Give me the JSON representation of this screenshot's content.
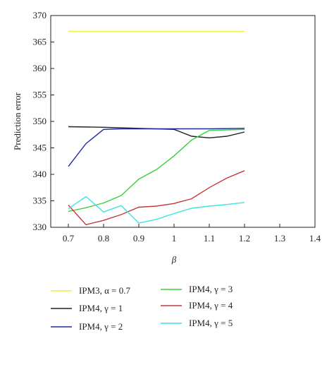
{
  "chart_data": {
    "type": "line",
    "xlabel": "β",
    "ylabel": "Prediction error",
    "xlim": [
      0.65,
      1.4
    ],
    "ylim": [
      330,
      370
    ],
    "xticks": [
      "0.7",
      "0.8",
      "0.9",
      "1",
      "1.1",
      "1.2",
      "1.3",
      "1.4"
    ],
    "yticks": [
      "330",
      "335",
      "340",
      "345",
      "350",
      "355",
      "360",
      "365",
      "370"
    ],
    "grid": false,
    "legend_position": "bottom",
    "series": [
      {
        "name": "IPM3, α = 0.7",
        "color": "#f2ec45",
        "x": [
          0.7,
          1.2
        ],
        "y": [
          367.0,
          367.0
        ]
      },
      {
        "name": "IPM4, γ = 1",
        "color": "#222222",
        "x": [
          0.7,
          0.8,
          0.9,
          1.0,
          1.05,
          1.1,
          1.15,
          1.2
        ],
        "y": [
          349.0,
          348.9,
          348.7,
          348.5,
          347.2,
          346.9,
          347.2,
          348.0
        ]
      },
      {
        "name": "IPM4, γ = 2",
        "color": "#1f2aa0",
        "x": [
          0.7,
          0.75,
          0.8,
          0.85,
          0.9,
          1.0,
          1.1,
          1.2
        ],
        "y": [
          341.5,
          345.8,
          348.5,
          348.6,
          348.6,
          348.6,
          348.6,
          348.7
        ]
      },
      {
        "name": "IPM4, γ = 3",
        "color": "#3ccf3c",
        "x": [
          0.7,
          0.75,
          0.8,
          0.85,
          0.9,
          0.95,
          1.0,
          1.05,
          1.1,
          1.15,
          1.2
        ],
        "y": [
          333.0,
          333.7,
          334.6,
          336.0,
          339.1,
          340.9,
          343.5,
          346.5,
          348.3,
          348.4,
          348.5
        ]
      },
      {
        "name": "IPM4, γ = 4",
        "color": "#c23a3a",
        "x": [
          0.7,
          0.75,
          0.8,
          0.85,
          0.9,
          0.95,
          1.0,
          1.05,
          1.1,
          1.15,
          1.2
        ],
        "y": [
          334.2,
          330.5,
          331.3,
          332.4,
          333.8,
          334.0,
          334.5,
          335.4,
          337.5,
          339.3,
          340.7
        ]
      },
      {
        "name": "IPM4, γ = 5",
        "color": "#3ce4e4",
        "x": [
          0.7,
          0.75,
          0.8,
          0.85,
          0.9,
          0.95,
          1.0,
          1.05,
          1.1,
          1.15,
          1.2
        ],
        "y": [
          333.5,
          335.8,
          332.9,
          334.1,
          330.8,
          331.5,
          332.6,
          333.6,
          334.0,
          334.3,
          334.7
        ]
      }
    ]
  }
}
